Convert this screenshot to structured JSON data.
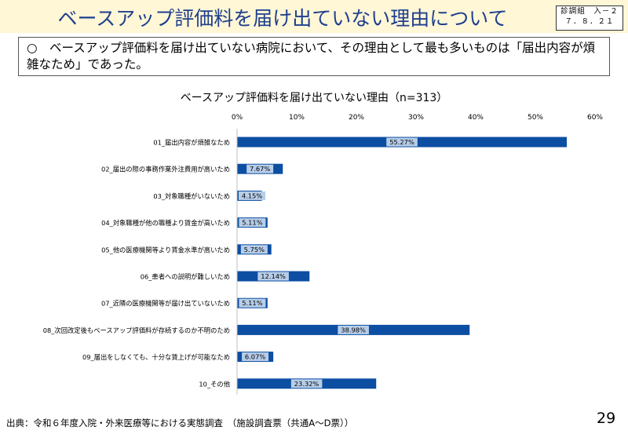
{
  "header": {
    "title": "ベースアップ評価料を届け出ていない理由について",
    "doc_ref_line1": "診調組　入－２",
    "doc_ref_line2": "７．８．２１"
  },
  "summary": {
    "bullet": "○",
    "text": "ベースアップ評価料を届け出ていない病院において、その理由として最も多いものは「届出内容が煩雑なため」であった。"
  },
  "chart_data": {
    "type": "bar",
    "orientation": "horizontal",
    "title": "ベースアップ評価料を届け出ていない理由（n=313）",
    "categories": [
      "01_届出内容が煩雑なため",
      "02_届出の際の事務作業外注費用が高いため",
      "03_対象職種がいないため",
      "04_対象職種が他の職種より賃金が高いため",
      "05_他の医療機関等より賃金水準が高いため",
      "06_患者への説明が難しいため",
      "07_近隣の医療機関等が届け出ていないため",
      "08_次回改定後もベースアップ評価料が存続するのか不明のため",
      "09_届出をしなくても、十分な賃上げが可能なため",
      "10_その他"
    ],
    "values": [
      55.27,
      7.67,
      4.15,
      5.11,
      5.75,
      12.14,
      5.11,
      38.98,
      6.07,
      23.32
    ],
    "value_labels": [
      "55.27%",
      "7.67%",
      "4.15%",
      "5.11%",
      "5.75%",
      "12.14%",
      "5.11%",
      "38.98%",
      "6.07%",
      "23.32%"
    ],
    "xlim": [
      0,
      60
    ],
    "ticks": [
      0,
      10,
      20,
      30,
      40,
      50,
      60
    ],
    "tick_labels": [
      "0%",
      "10%",
      "20%",
      "30%",
      "40%",
      "50%",
      "60%"
    ],
    "bar_color": "#0b4ea2",
    "label_bg_color": "#b7cde8"
  },
  "footer": {
    "source": "出典：令和６年度入院・外来医療等における実態調査　（施設調査票（共通A～D票））",
    "page_number": "29"
  }
}
